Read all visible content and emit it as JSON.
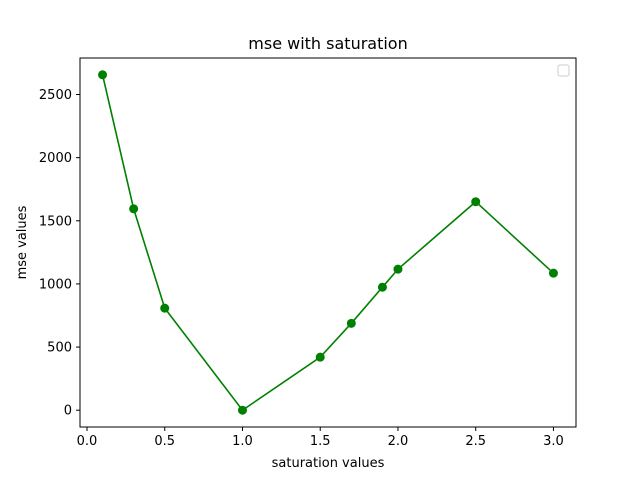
{
  "chart_data": {
    "type": "line",
    "title": "mse with saturation",
    "xlabel": "saturation values",
    "ylabel": "mse values",
    "xlim": [
      -0.045,
      3.145
    ],
    "ylim": [
      -133,
      2789
    ],
    "xticks": [
      0.0,
      0.5,
      1.0,
      1.5,
      2.0,
      2.5,
      3.0
    ],
    "xtick_labels": [
      "0.0",
      "0.5",
      "1.0",
      "1.5",
      "2.0",
      "2.5",
      "3.0"
    ],
    "yticks": [
      0,
      500,
      1000,
      1500,
      2000,
      2500
    ],
    "ytick_labels": [
      "0",
      "500",
      "1000",
      "1500",
      "2000",
      "2500"
    ],
    "grid": false,
    "legend": {
      "location": "upper right",
      "entries": []
    },
    "series": [
      {
        "color": "#008000",
        "marker": "circle",
        "x": [
          0.1,
          0.3,
          0.5,
          1.0,
          1.5,
          1.7,
          1.9,
          2.0,
          2.5,
          3.0
        ],
        "y": [
          2656,
          1595,
          808,
          0,
          420,
          688,
          974,
          1117,
          1651,
          1085
        ]
      }
    ]
  }
}
